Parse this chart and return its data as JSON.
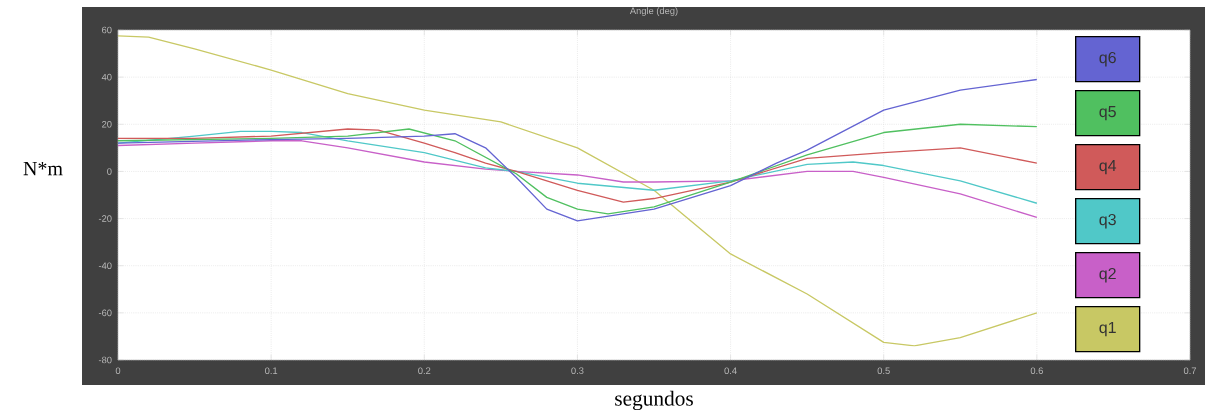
{
  "chart_data": {
    "type": "line",
    "title": "Angle (deg)",
    "xlabel": "segundos",
    "ylabel": "N*m",
    "xlim": [
      0,
      0.7
    ],
    "ylim": [
      -80,
      60
    ],
    "xticks": [
      0,
      0.1,
      0.2,
      0.3,
      0.4,
      0.5,
      0.6,
      0.7
    ],
    "yticks": [
      -80,
      -60,
      -40,
      -20,
      0,
      20,
      40,
      60
    ],
    "grid": true,
    "legend": "right",
    "line_style": "solid",
    "marker": "none",
    "series": [
      {
        "name": "q1",
        "color": "#c8c864",
        "x": [
          0,
          0.02,
          0.05,
          0.1,
          0.15,
          0.2,
          0.25,
          0.3,
          0.35,
          0.4,
          0.45,
          0.5,
          0.52,
          0.55,
          0.6
        ],
        "values": [
          57.5,
          57,
          52,
          43,
          33,
          26,
          21,
          10,
          -8,
          -35,
          -52,
          -72.5,
          -74,
          -70.5,
          -60
        ]
      },
      {
        "name": "q2",
        "color": "#c860c8",
        "x": [
          0,
          0.05,
          0.1,
          0.12,
          0.15,
          0.2,
          0.24,
          0.26,
          0.3,
          0.33,
          0.35,
          0.4,
          0.45,
          0.48,
          0.5,
          0.55,
          0.6
        ],
        "values": [
          11,
          12,
          13,
          13,
          10,
          4,
          1,
          0,
          -1.5,
          -4.5,
          -4.5,
          -4,
          0,
          0,
          -2.5,
          -9.5,
          -19.5
        ]
      },
      {
        "name": "q3",
        "color": "#50c8c8",
        "x": [
          0,
          0.05,
          0.08,
          0.1,
          0.12,
          0.15,
          0.2,
          0.24,
          0.26,
          0.3,
          0.35,
          0.4,
          0.45,
          0.48,
          0.5,
          0.55,
          0.6
        ],
        "values": [
          12,
          15,
          17,
          17,
          16.5,
          13,
          8,
          1.5,
          0,
          -5,
          -8,
          -4,
          3,
          4,
          2.5,
          -4,
          -13.5
        ]
      },
      {
        "name": "q4",
        "color": "#d05a5a",
        "x": [
          0,
          0.05,
          0.1,
          0.15,
          0.17,
          0.2,
          0.22,
          0.24,
          0.26,
          0.3,
          0.33,
          0.35,
          0.4,
          0.45,
          0.5,
          0.55,
          0.6
        ],
        "values": [
          14,
          14,
          15,
          18,
          17.5,
          12,
          8,
          3.5,
          0,
          -8,
          -13,
          -11.5,
          -4.5,
          5.5,
          8,
          10,
          3.5
        ]
      },
      {
        "name": "q5",
        "color": "#50c060",
        "x": [
          0,
          0.1,
          0.15,
          0.19,
          0.22,
          0.24,
          0.26,
          0.28,
          0.3,
          0.32,
          0.35,
          0.4,
          0.45,
          0.5,
          0.55,
          0.6
        ],
        "values": [
          13,
          14,
          15,
          18,
          13,
          6,
          -1,
          -11,
          -16,
          -18,
          -15,
          -4.5,
          7,
          16.5,
          20,
          19
        ]
      },
      {
        "name": "q6",
        "color": "#6464d2",
        "x": [
          0,
          0.1,
          0.15,
          0.2,
          0.22,
          0.24,
          0.26,
          0.28,
          0.3,
          0.35,
          0.4,
          0.43,
          0.45,
          0.5,
          0.55,
          0.6
        ],
        "values": [
          12,
          13.5,
          14,
          15,
          16,
          10,
          -2.5,
          -16,
          -21,
          -16,
          -6,
          3.5,
          9,
          26,
          34.5,
          39
        ]
      }
    ]
  }
}
